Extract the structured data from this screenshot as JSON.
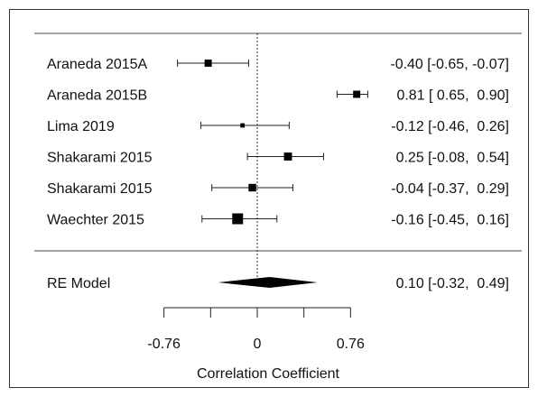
{
  "chart_data": {
    "type": "forest",
    "xlabel": "Correlation Coefficient",
    "xtick_labels": [
      "-0.76",
      "0",
      "0.76"
    ],
    "xticks": [
      -0.76,
      -0.38,
      0,
      0.38,
      0.76
    ],
    "xlim": [
      -1.0,
      1.1
    ],
    "studies": [
      {
        "label": "Araneda 2015A",
        "estimate": -0.4,
        "ci_low": -0.65,
        "ci_high": -0.07,
        "ci_text": "-0.40 [-0.65, -0.07]",
        "weight": 0.55
      },
      {
        "label": "Araneda 2015B",
        "estimate": 0.81,
        "ci_low": 0.65,
        "ci_high": 0.9,
        "ci_text": "0.81 [ 0.65,  0.90]",
        "weight": 0.55
      },
      {
        "label": "Lima 2019",
        "estimate": -0.12,
        "ci_low": -0.46,
        "ci_high": 0.26,
        "ci_text": "-0.12 [-0.46,  0.26]",
        "weight": 0.2
      },
      {
        "label": "Shakarami 2015",
        "estimate": 0.25,
        "ci_low": -0.08,
        "ci_high": 0.54,
        "ci_text": "0.25 [-0.08,  0.54]",
        "weight": 0.65
      },
      {
        "label": "Shakarami 2015",
        "estimate": -0.04,
        "ci_low": -0.37,
        "ci_high": 0.29,
        "ci_text": "-0.04 [-0.37,  0.29]",
        "weight": 0.6
      },
      {
        "label": "Waechter 2015",
        "estimate": -0.16,
        "ci_low": -0.45,
        "ci_high": 0.16,
        "ci_text": "-0.16 [-0.45,  0.16]",
        "weight": 1.0
      }
    ],
    "summary": {
      "label": "RE Model",
      "estimate": 0.1,
      "ci_low": -0.32,
      "ci_high": 0.49,
      "ci_text": "0.10 [-0.32,  0.49]"
    },
    "reference_line": 0
  }
}
